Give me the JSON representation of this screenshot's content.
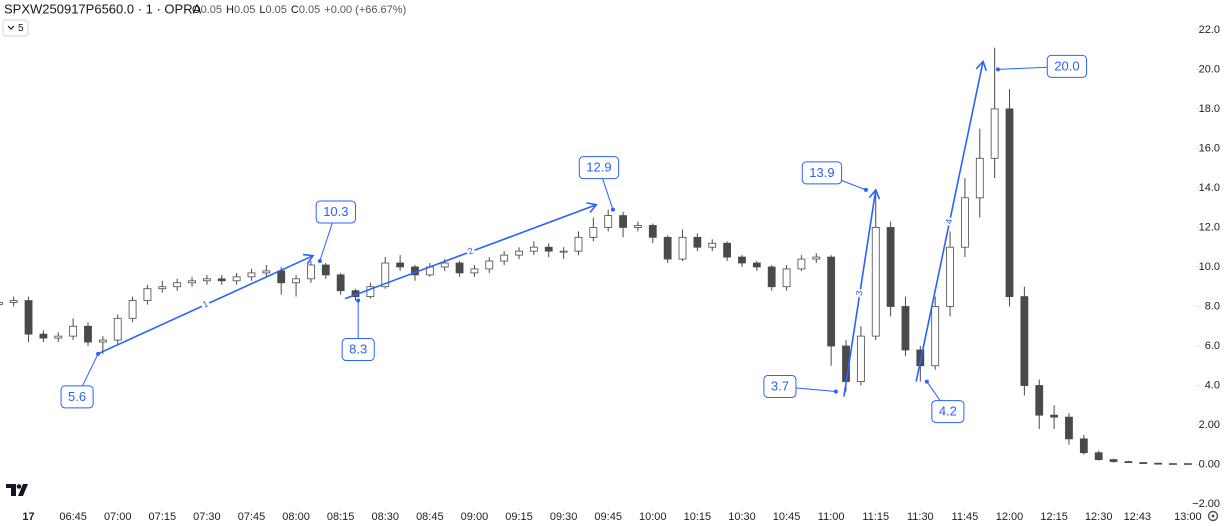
{
  "chart_data": {
    "type": "candlestick",
    "title": "SPXW250917P6560.0 · 1 · OPRA",
    "ohlc_header": [
      {
        "key": "O",
        "value": "0.05"
      },
      {
        "key": "H",
        "value": "0.05"
      },
      {
        "key": "L",
        "value": "0.05"
      },
      {
        "key": "C",
        "value": "0.05"
      }
    ],
    "change": "+0.00 (+66.67%)",
    "interval_label": "5",
    "up_color": "#ffffff",
    "down_color": "#4a4a4a",
    "wick_color": "#4a4a4a",
    "annotation_color": "#2962ff",
    "xlim": [
      380.4,
      782.4
    ],
    "ylim": [
      -2.3,
      22.6
    ],
    "xticks": [
      {
        "value": 390,
        "label": "17"
      },
      {
        "value": 405,
        "label": "06:45"
      },
      {
        "value": 420,
        "label": "07:00"
      },
      {
        "value": 435,
        "label": "07:15"
      },
      {
        "value": 450,
        "label": "07:30"
      },
      {
        "value": 465,
        "label": "07:45"
      },
      {
        "value": 480,
        "label": "08:00"
      },
      {
        "value": 495,
        "label": "08:15"
      },
      {
        "value": 510,
        "label": "08:30"
      },
      {
        "value": 525,
        "label": "08:45"
      },
      {
        "value": 540,
        "label": "09:00"
      },
      {
        "value": 555,
        "label": "09:15"
      },
      {
        "value": 570,
        "label": "09:30"
      },
      {
        "value": 585,
        "label": "09:45"
      },
      {
        "value": 600,
        "label": "10:00"
      },
      {
        "value": 615,
        "label": "10:15"
      },
      {
        "value": 630,
        "label": "10:30"
      },
      {
        "value": 645,
        "label": "10:45"
      },
      {
        "value": 660,
        "label": "11:00"
      },
      {
        "value": 675,
        "label": "11:15"
      },
      {
        "value": 690,
        "label": "11:30"
      },
      {
        "value": 705,
        "label": "11:45"
      },
      {
        "value": 720,
        "label": "12:00"
      },
      {
        "value": 735,
        "label": "12:15"
      },
      {
        "value": 750,
        "label": "12:30"
      },
      {
        "value": 763,
        "label": "12:43"
      },
      {
        "value": 780,
        "label": "13:00"
      }
    ],
    "yticks": [
      {
        "value": 22,
        "label": "22.0"
      },
      {
        "value": 20,
        "label": "20.0"
      },
      {
        "value": 18,
        "label": "18.0"
      },
      {
        "value": 16,
        "label": "16.0"
      },
      {
        "value": 14,
        "label": "14.0"
      },
      {
        "value": 12,
        "label": "12.0"
      },
      {
        "value": 10,
        "label": "10.0"
      },
      {
        "value": 8,
        "label": "8.0"
      },
      {
        "value": 6,
        "label": "6.0"
      },
      {
        "value": 4,
        "label": "4.0"
      },
      {
        "value": 2,
        "label": "2.00"
      },
      {
        "value": 0,
        "label": "0.00"
      },
      {
        "value": -2,
        "label": "−2.00"
      }
    ],
    "x": [
      380,
      385,
      390,
      395,
      400,
      405,
      410,
      415,
      420,
      425,
      430,
      435,
      440,
      445,
      450,
      455,
      460,
      465,
      470,
      475,
      480,
      485,
      490,
      495,
      500,
      505,
      510,
      515,
      520,
      525,
      530,
      535,
      540,
      545,
      550,
      555,
      560,
      565,
      570,
      575,
      580,
      585,
      590,
      595,
      600,
      605,
      610,
      615,
      620,
      625,
      630,
      635,
      640,
      645,
      650,
      655,
      660,
      665,
      670,
      675,
      680,
      685,
      690,
      695,
      700,
      705,
      710,
      715,
      720,
      725,
      730,
      735,
      740,
      745,
      750,
      755,
      760,
      765,
      770,
      775,
      780
    ],
    "open": [
      8.1,
      8.2,
      8.3,
      6.6,
      6.4,
      6.5,
      7.0,
      6.2,
      6.3,
      7.4,
      8.3,
      8.9,
      9.0,
      9.2,
      9.3,
      9.4,
      9.3,
      9.5,
      9.7,
      9.8,
      9.2,
      9.4,
      10.1,
      9.6,
      8.8,
      8.5,
      9.0,
      10.2,
      10.0,
      9.6,
      10.0,
      10.2,
      9.7,
      9.9,
      10.3,
      10.6,
      10.8,
      11.0,
      10.8,
      10.8,
      11.5,
      12.0,
      12.6,
      12.0,
      12.1,
      11.5,
      10.4,
      11.5,
      11.0,
      11.2,
      10.5,
      10.2,
      10.0,
      9.0,
      9.9,
      10.4,
      10.5,
      6.0,
      4.2,
      6.5,
      12.0,
      8.0,
      5.8,
      5.0,
      8.0,
      11.0,
      13.5,
      15.5,
      18.0,
      8.5,
      4.0,
      2.5,
      2.4,
      1.3,
      0.6,
      0.25,
      0.15,
      0.1,
      0.07,
      0.05,
      0.05
    ],
    "high": [
      8.4,
      8.5,
      8.5,
      6.8,
      6.7,
      7.4,
      7.2,
      6.5,
      7.6,
      8.5,
      9.1,
      9.3,
      9.4,
      9.5,
      9.6,
      9.6,
      9.7,
      9.9,
      10.1,
      10.0,
      9.6,
      10.3,
      10.2,
      9.7,
      8.9,
      9.2,
      10.5,
      10.6,
      10.1,
      10.2,
      10.4,
      10.3,
      10.1,
      10.5,
      10.8,
      11.0,
      11.3,
      11.2,
      11.0,
      11.8,
      12.5,
      12.9,
      12.8,
      12.3,
      12.2,
      11.6,
      11.9,
      11.7,
      11.4,
      11.3,
      10.6,
      10.3,
      10.1,
      10.1,
      10.6,
      10.7,
      10.6,
      6.3,
      7.0,
      13.9,
      12.3,
      8.5,
      6.0,
      8.5,
      11.8,
      14.5,
      17.0,
      21.1,
      19.0,
      9.0,
      4.3,
      3.0,
      2.6,
      1.5,
      0.7,
      0.3,
      0.2,
      0.12,
      0.08,
      0.06,
      0.06
    ],
    "low": [
      7.9,
      8.0,
      6.2,
      6.2,
      6.2,
      6.3,
      6.0,
      5.6,
      6.1,
      7.2,
      8.1,
      8.7,
      8.8,
      9.0,
      9.1,
      9.1,
      9.1,
      9.3,
      9.5,
      8.6,
      8.5,
      9.2,
      9.4,
      8.6,
      8.3,
      8.4,
      8.9,
      9.8,
      9.3,
      9.5,
      9.8,
      9.5,
      9.5,
      9.7,
      10.1,
      10.4,
      10.6,
      10.5,
      10.4,
      10.6,
      11.3,
      11.8,
      11.5,
      11.8,
      11.2,
      10.2,
      10.3,
      10.8,
      10.8,
      10.3,
      10.0,
      9.8,
      8.8,
      8.8,
      9.8,
      10.2,
      5.0,
      3.7,
      4.0,
      6.3,
      7.5,
      5.5,
      4.2,
      4.8,
      7.5,
      10.5,
      12.5,
      14.5,
      8.0,
      3.5,
      1.8,
      1.8,
      1.0,
      0.5,
      0.2,
      0.1,
      0.08,
      0.05,
      0.05,
      0.05,
      0.05
    ],
    "close": [
      8.2,
      8.3,
      6.6,
      6.4,
      6.5,
      7.0,
      6.2,
      6.3,
      7.4,
      8.3,
      8.9,
      9.0,
      9.2,
      9.3,
      9.4,
      9.3,
      9.5,
      9.7,
      9.8,
      9.2,
      9.4,
      10.1,
      9.6,
      8.8,
      8.5,
      9.0,
      10.2,
      10.0,
      9.6,
      10.0,
      10.2,
      9.7,
      9.9,
      10.3,
      10.6,
      10.8,
      11.0,
      10.8,
      10.8,
      11.5,
      12.0,
      12.6,
      12.0,
      12.1,
      11.5,
      10.4,
      11.5,
      11.0,
      11.2,
      10.5,
      10.2,
      10.0,
      9.0,
      9.9,
      10.4,
      10.5,
      6.0,
      4.2,
      6.5,
      12.0,
      8.0,
      5.8,
      5.0,
      8.0,
      11.0,
      13.5,
      15.5,
      18.0,
      8.5,
      4.0,
      2.5,
      2.4,
      1.3,
      0.6,
      0.25,
      0.15,
      0.1,
      0.07,
      0.05,
      0.05,
      0.05
    ],
    "trend_lines": [
      {
        "label": "1",
        "from": [
          413.4,
          5.61
        ],
        "to": [
          485.7,
          10.57
        ]
      },
      {
        "label": "2",
        "from": [
          496.5,
          8.4
        ],
        "to": [
          581,
          13.15
        ]
      },
      {
        "label": "3",
        "from": [
          664.3,
          3.44
        ],
        "to": [
          675,
          13.9
        ]
      },
      {
        "label": "4",
        "from": [
          688.6,
          4.2
        ],
        "to": [
          711.1,
          20.4
        ]
      }
    ],
    "annotations": [
      {
        "x": 413.4,
        "value": 5.6,
        "label": "5.6"
      },
      {
        "x": 488,
        "value": 10.3,
        "label": "10.3"
      },
      {
        "x": 500.9,
        "value": 8.3,
        "label": "8.3"
      },
      {
        "x": 586.6,
        "value": 12.9,
        "label": "12.9"
      },
      {
        "x": 671.7,
        "value": 13.9,
        "label": "13.9"
      },
      {
        "x": 661.6,
        "value": 3.7,
        "label": "3.7"
      },
      {
        "x": 692.2,
        "value": 4.2,
        "label": "4.2"
      },
      {
        "x": 716.1,
        "value": 20,
        "label": "20.0"
      }
    ]
  }
}
